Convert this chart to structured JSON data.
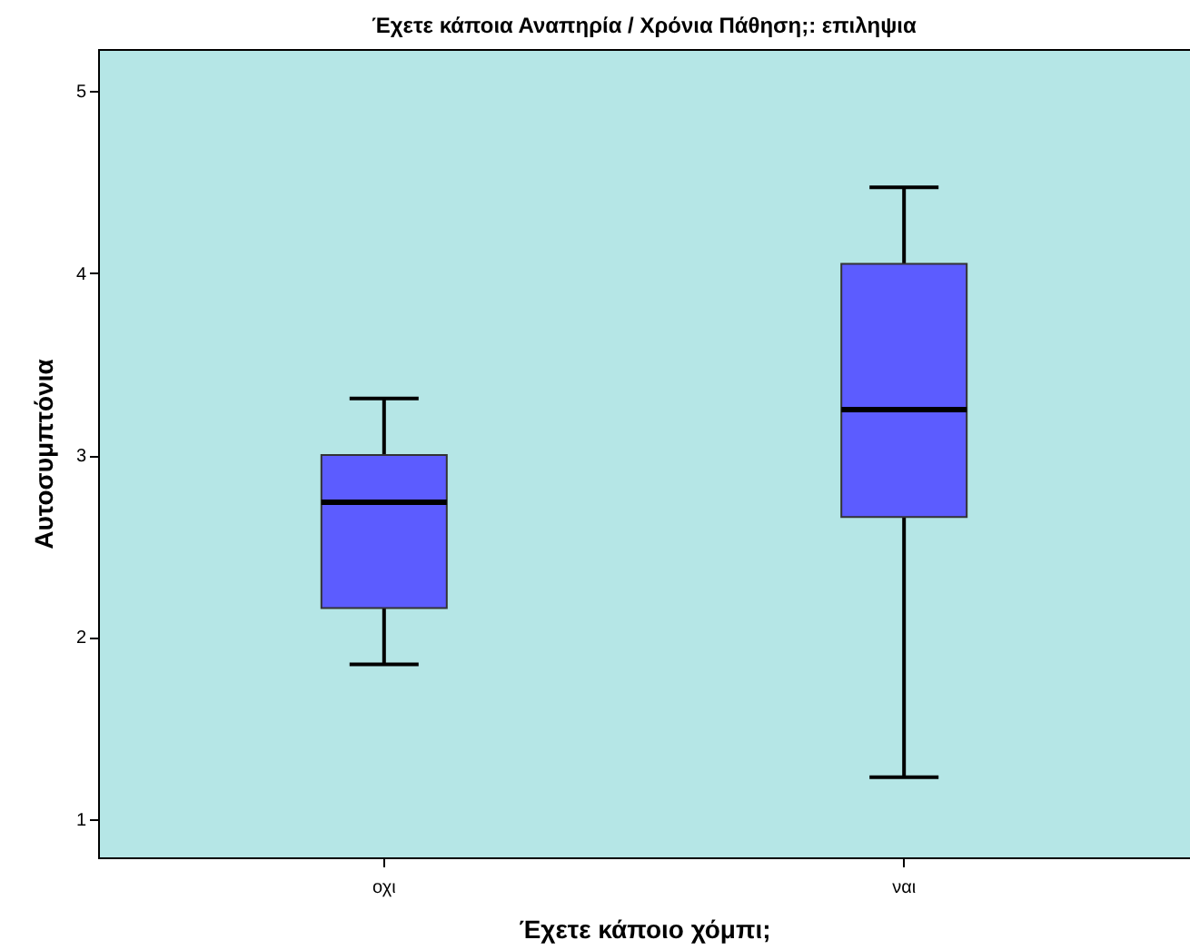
{
  "chart_data": {
    "type": "box",
    "title": "Έχετε κάποια Αναπηρία / Χρόνια Πάθηση;: επιληψια",
    "xlabel": "Έχετε κάποιο χόμπι;",
    "ylabel": "Αυτοσυμπτόνια",
    "categories": [
      "οχι",
      "ναι"
    ],
    "boxes": [
      {
        "low": 1.85,
        "q1": 2.16,
        "median": 2.74,
        "q3": 3.0,
        "high": 3.31
      },
      {
        "low": 1.23,
        "q1": 2.66,
        "median": 3.25,
        "q3": 4.05,
        "high": 4.47
      }
    ],
    "color": "#5c5cff",
    "ylim": [
      0.79,
      5.23
    ],
    "yticks": [
      1,
      2,
      3,
      4,
      5
    ],
    "grid": false
  }
}
